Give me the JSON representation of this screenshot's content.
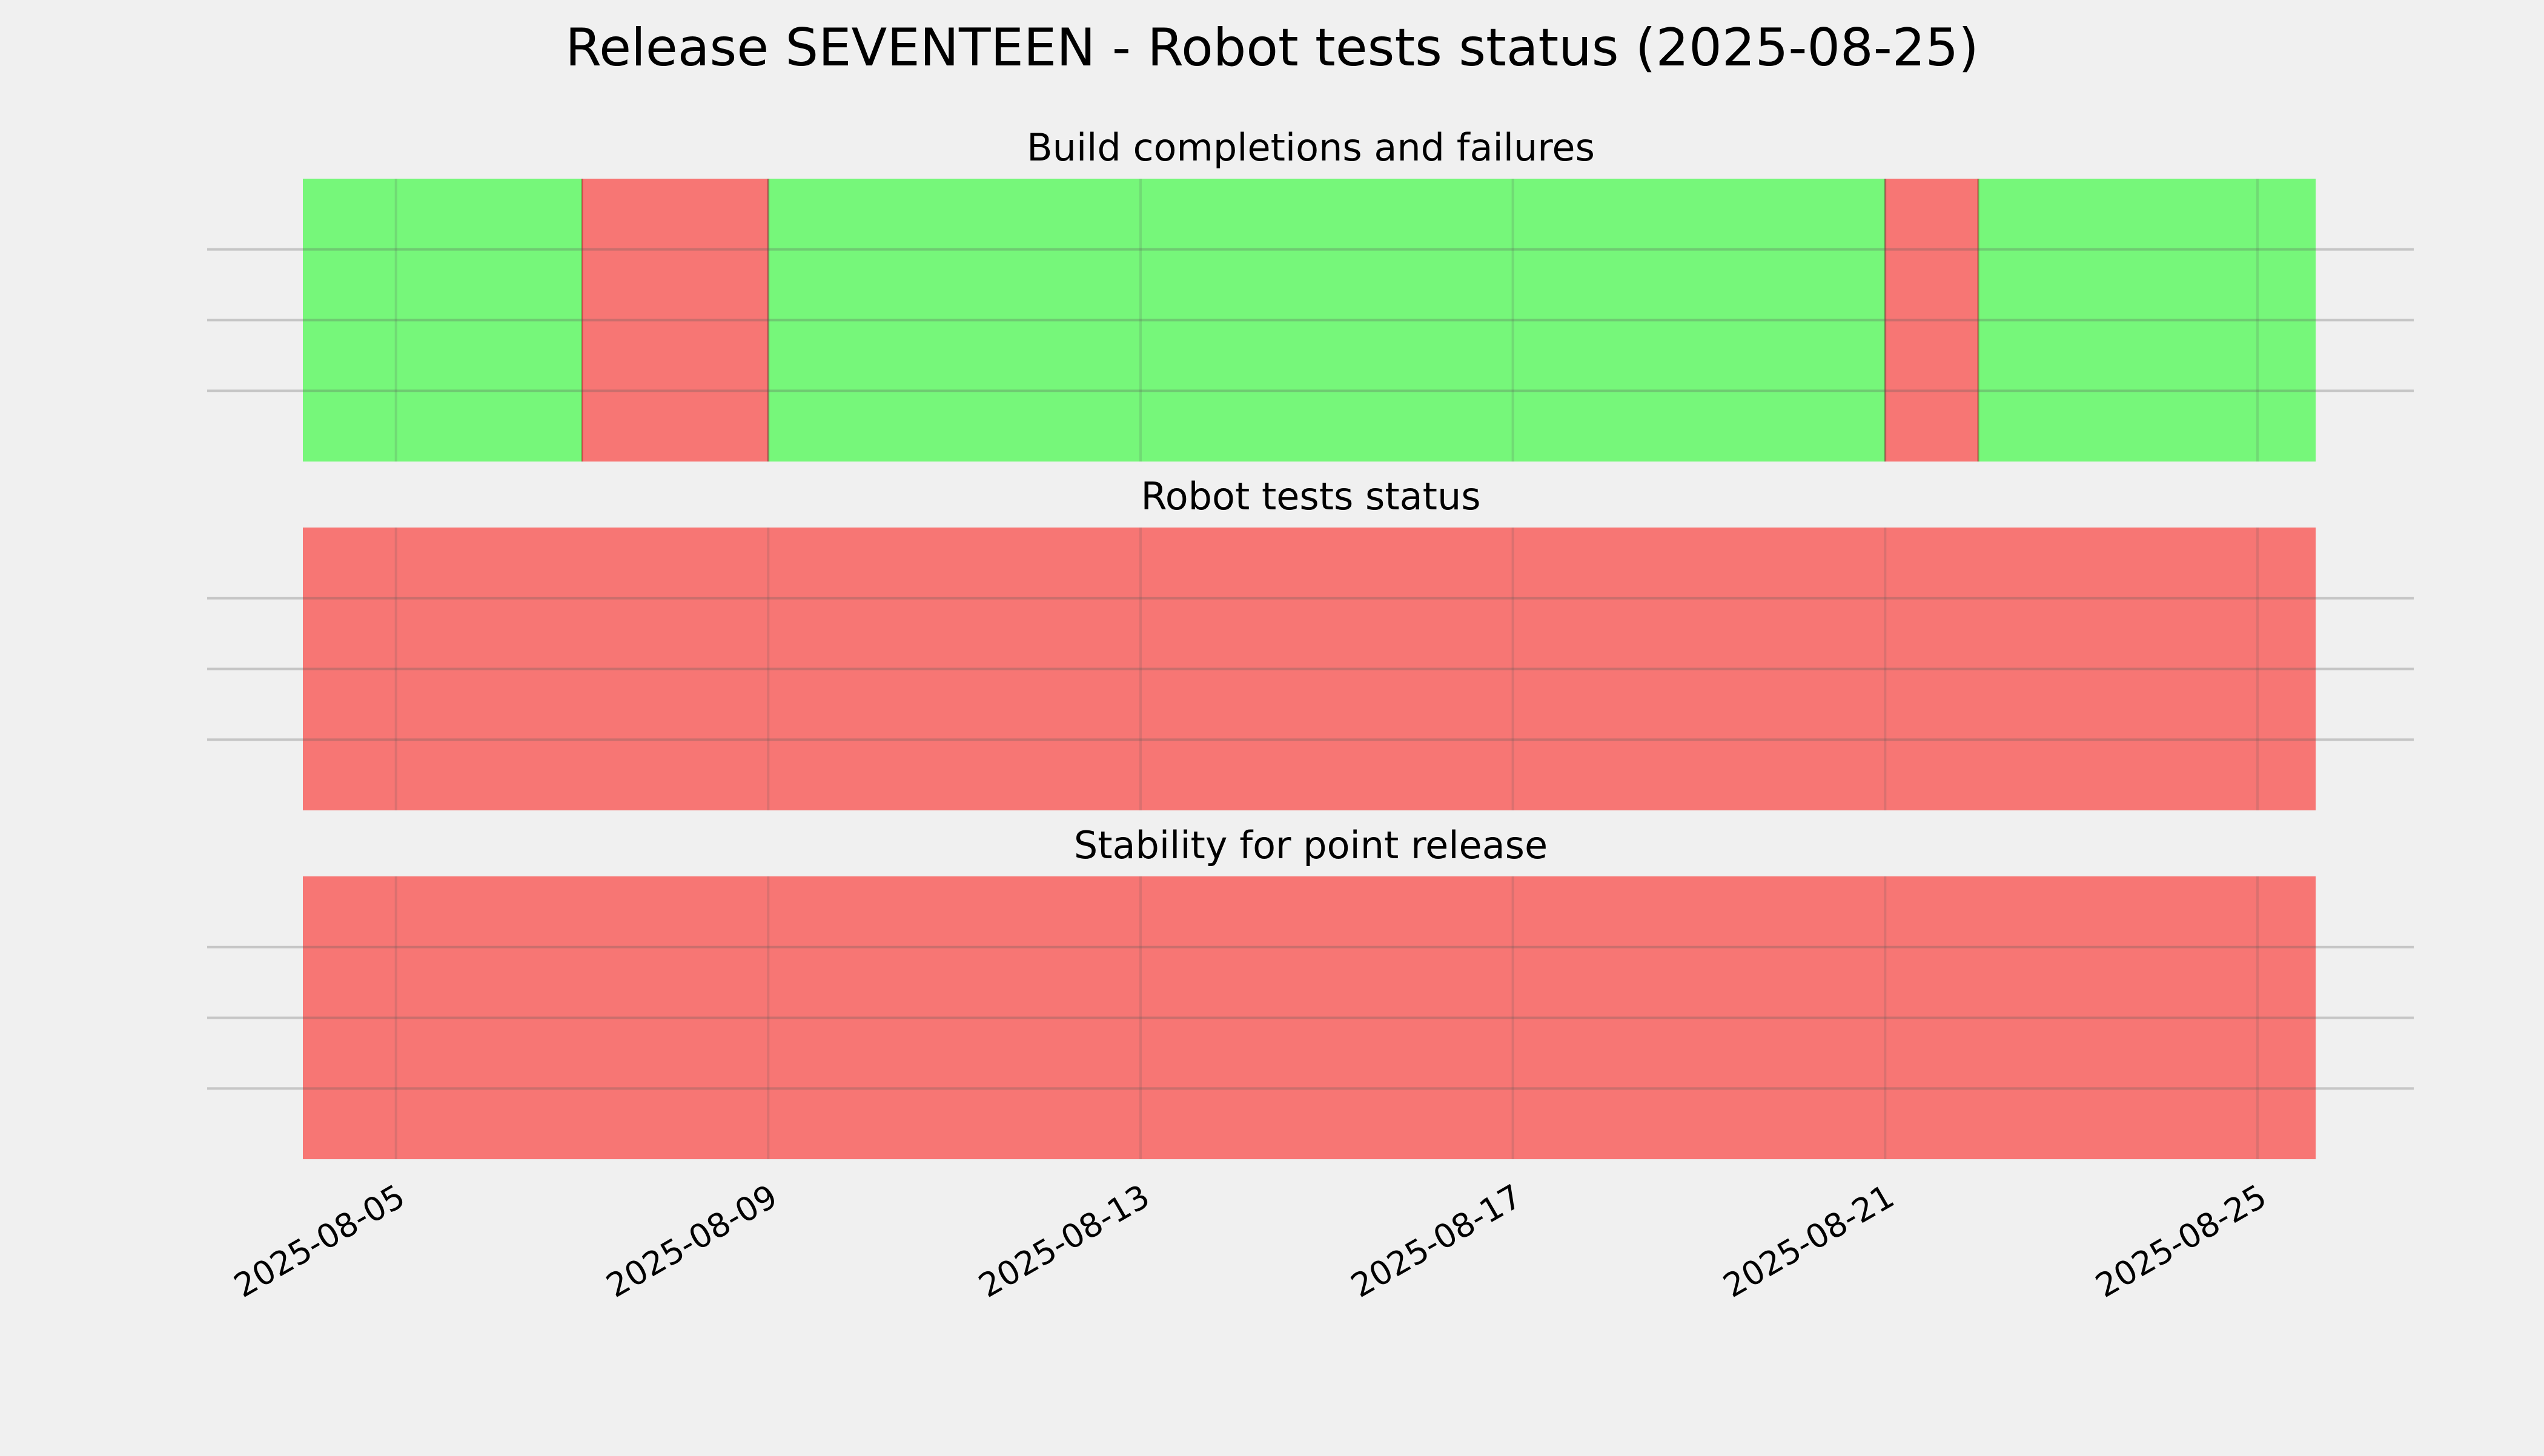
{
  "chart_data": {
    "type": "timeline",
    "title": "Release SEVENTEEN - Robot tests status (2025-08-25)",
    "x_axis": {
      "type": "date",
      "range": [
        "2025-08-04",
        "2025-08-25T15:00"
      ],
      "ticks": [
        "2025-08-05",
        "2025-08-09",
        "2025-08-13",
        "2025-08-17",
        "2025-08-21",
        "2025-08-25"
      ]
    },
    "grid": true,
    "colors": {
      "success": "#76f77a",
      "failure": "#f77674",
      "background": "#f0f0f0",
      "grid": "#cbcbcb"
    },
    "panels": [
      {
        "title": "Build completions and failures",
        "segments": [
          {
            "start": "2025-08-04",
            "end": "2025-08-07T00:00",
            "status": "success"
          },
          {
            "start": "2025-08-07T00:00",
            "end": "2025-08-09T00:00",
            "status": "failure"
          },
          {
            "start": "2025-08-09T00:00",
            "end": "2025-08-21T00:00",
            "status": "success"
          },
          {
            "start": "2025-08-21T00:00",
            "end": "2025-08-22T00:00",
            "status": "failure"
          },
          {
            "start": "2025-08-22T00:00",
            "end": "2025-08-25T15:00",
            "status": "success"
          }
        ]
      },
      {
        "title": "Robot tests status",
        "segments": [
          {
            "start": "2025-08-04",
            "end": "2025-08-25T15:00",
            "status": "failure"
          }
        ]
      },
      {
        "title": "Stability for point release",
        "segments": [
          {
            "start": "2025-08-04",
            "end": "2025-08-25T15:00",
            "status": "failure"
          }
        ]
      }
    ]
  }
}
